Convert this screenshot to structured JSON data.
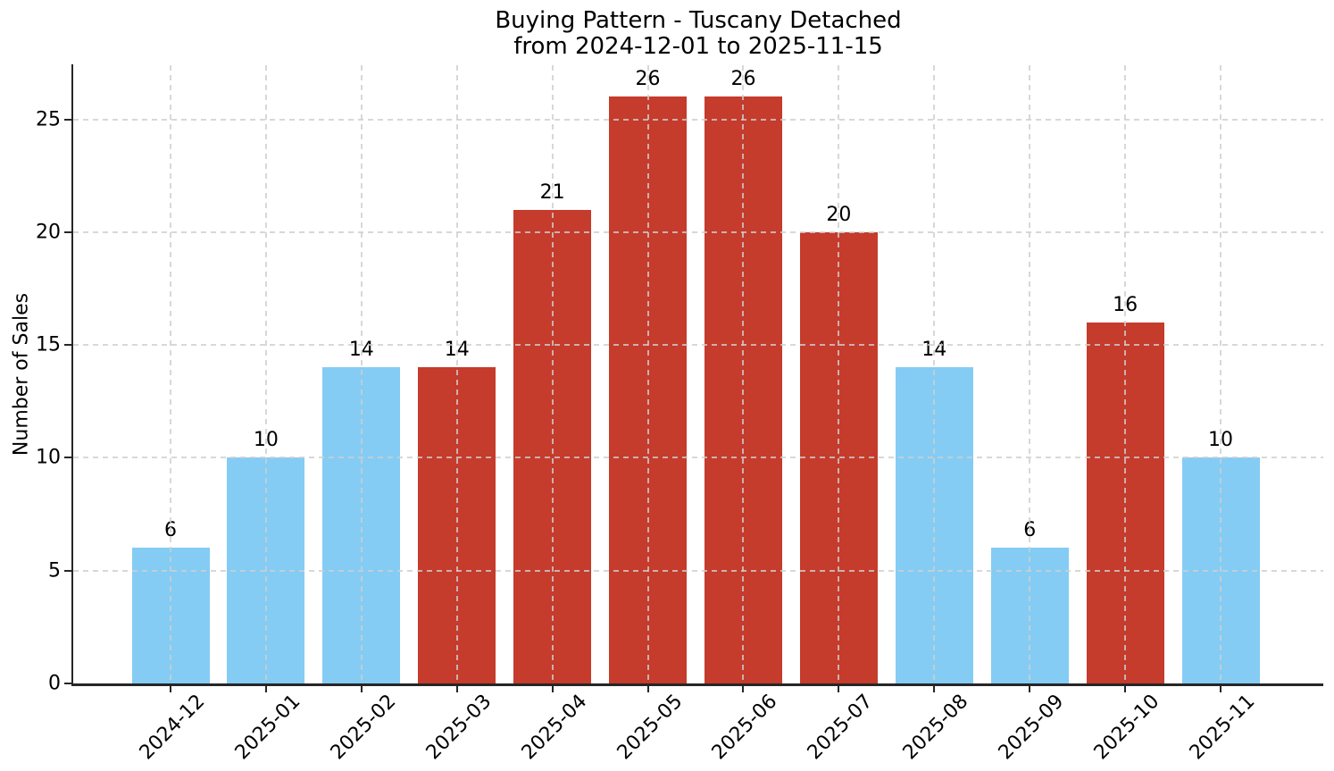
{
  "figure": {
    "title_line1": "Buying Pattern - Tuscany Detached",
    "title_line2": "from 2024-12-01 to 2025-11-15",
    "ylabel": "Number of Sales"
  },
  "chart_data": {
    "type": "bar",
    "title": "Buying Pattern - Tuscany Detached",
    "subtitle": "from 2024-12-01 to 2025-11-15",
    "xlabel": "",
    "ylabel": "Number of Sales",
    "categories": [
      "2024-12",
      "2025-01",
      "2025-02",
      "2025-03",
      "2025-04",
      "2025-05",
      "2025-06",
      "2025-07",
      "2025-08",
      "2025-09",
      "2025-10",
      "2025-11"
    ],
    "values": [
      6,
      10,
      14,
      14,
      21,
      26,
      26,
      20,
      14,
      6,
      16,
      10
    ],
    "bar_colors": [
      "#84CCF4",
      "#84CCF4",
      "#84CCF4",
      "#C53B2C",
      "#C53B2C",
      "#C53B2C",
      "#C53B2C",
      "#C53B2C",
      "#84CCF4",
      "#84CCF4",
      "#C53B2C",
      "#84CCF4"
    ],
    "palette": {
      "blue": "#84CCF4",
      "red": "#C53B2C"
    },
    "yticks": [
      0,
      5,
      10,
      15,
      20,
      25
    ],
    "ylim": [
      0,
      27.4
    ],
    "show_values_above_bars": true,
    "grid": {
      "enabled": true,
      "linestyle": "dashed",
      "x": true,
      "y": true,
      "drawn_over_bars": true
    },
    "legend": false,
    "x_tick_rotation_deg": 45
  }
}
